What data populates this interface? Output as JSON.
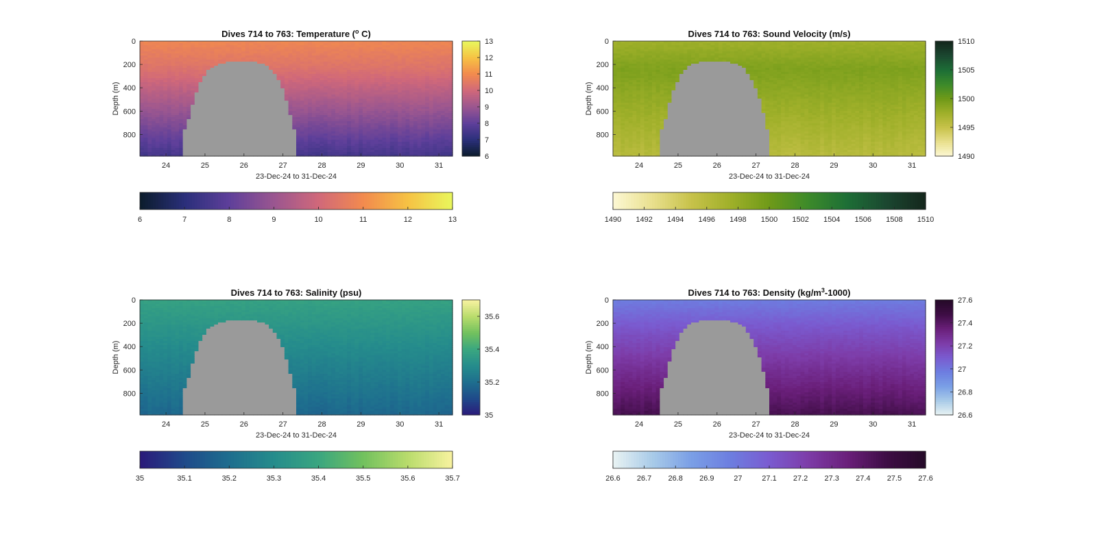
{
  "chart_data": [
    {
      "type": "heatmap",
      "title_main": "Dives 714 to 763: Temperature (",
      "title_sup": "o",
      "title_end": " C)",
      "xlabel": "23-Dec-24 to 31-Dec-24",
      "ylabel": "Depth (m)",
      "xticks": [
        "24",
        "25",
        "26",
        "27",
        "28",
        "29",
        "30",
        "31"
      ],
      "xtick_values": [
        24,
        25,
        26,
        27,
        28,
        29,
        30,
        31
      ],
      "xlim": [
        23.33,
        31.35
      ],
      "yticks": [
        "0",
        "200",
        "400",
        "600",
        "800"
      ],
      "ytick_values": [
        0,
        200,
        400,
        600,
        800
      ],
      "ylim": [
        0,
        985
      ],
      "colorbar_ticks": [
        "6",
        "7",
        "8",
        "9",
        "10",
        "11",
        "12",
        "13"
      ],
      "colorbar_values": [
        6,
        7,
        8,
        9,
        10,
        11,
        12,
        13
      ],
      "crange": [
        6,
        13
      ],
      "hbar_ticks": [
        "6",
        "7",
        "8",
        "9",
        "10",
        "11",
        "12",
        "13"
      ],
      "hbar_values": [
        6,
        7,
        8,
        9,
        10,
        11,
        12,
        13
      ],
      "colormap": [
        "#0b1c2b",
        "#2a2f7a",
        "#5e3f9a",
        "#9a5690",
        "#d0687a",
        "#f28a4e",
        "#f6c244",
        "#e9f75c"
      ],
      "values": {
        "surface": 10.9,
        "mid": 10.3,
        "deep": 7.5
      },
      "gap_start_day": 24.45,
      "gap_end_day": 27.35,
      "gap_top_depth": 180,
      "gap_color": "#9a9a9a"
    },
    {
      "type": "heatmap",
      "title_main": "Dives 714 to 763: Sound Velocity (m/s)",
      "title_sup": "",
      "title_end": "",
      "xlabel": "23-Dec-24 to 31-Dec-24",
      "ylabel": "Depth (m)",
      "xticks": [
        "24",
        "25",
        "26",
        "27",
        "28",
        "29",
        "30",
        "31"
      ],
      "xtick_values": [
        24,
        25,
        26,
        27,
        28,
        29,
        30,
        31
      ],
      "xlim": [
        23.33,
        31.35
      ],
      "yticks": [
        "0",
        "200",
        "400",
        "600",
        "800"
      ],
      "ytick_values": [
        0,
        200,
        400,
        600,
        800
      ],
      "ylim": [
        0,
        985
      ],
      "colorbar_ticks": [
        "1490",
        "1495",
        "1500",
        "1505",
        "1510"
      ],
      "colorbar_values": [
        1490,
        1495,
        1500,
        1505,
        1510
      ],
      "crange": [
        1490,
        1510
      ],
      "hbar_ticks": [
        "1490",
        "1492",
        "1494",
        "1496",
        "1498",
        "1500",
        "1502",
        "1504",
        "1506",
        "1508",
        "1510"
      ],
      "hbar_values": [
        1490,
        1492,
        1494,
        1496,
        1498,
        1500,
        1502,
        1504,
        1506,
        1508,
        1510
      ],
      "colormap": [
        "#fdf8d4",
        "#e9e08e",
        "#c7c24a",
        "#a0b02a",
        "#6f9a18",
        "#3c8a2a",
        "#1d6e36",
        "#1b4730",
        "#14261c"
      ],
      "values": {
        "surface": 1497.5,
        "mid": 1499.2,
        "deep": 1496.0
      },
      "gap_start_day": 24.55,
      "gap_end_day": 27.35,
      "gap_top_depth": 180,
      "gap_color": "#9a9a9a"
    },
    {
      "type": "heatmap",
      "title_main": "Dives 714 to 763: Salinity (psu)",
      "title_sup": "",
      "title_end": "",
      "xlabel": "23-Dec-24 to 31-Dec-24",
      "ylabel": "Depth (m)",
      "xticks": [
        "24",
        "25",
        "26",
        "27",
        "28",
        "29",
        "30",
        "31"
      ],
      "xtick_values": [
        24,
        25,
        26,
        27,
        28,
        29,
        30,
        31
      ],
      "xlim": [
        23.33,
        31.35
      ],
      "yticks": [
        "0",
        "200",
        "400",
        "600",
        "800"
      ],
      "ytick_values": [
        0,
        200,
        400,
        600,
        800
      ],
      "ylim": [
        0,
        985
      ],
      "colorbar_ticks": [
        "35",
        "35.2",
        "35.4",
        "35.6"
      ],
      "colorbar_values": [
        35,
        35.2,
        35.4,
        35.6
      ],
      "crange": [
        35,
        35.7
      ],
      "hbar_ticks": [
        "35",
        "35.1",
        "35.2",
        "35.3",
        "35.4",
        "35.5",
        "35.6",
        "35.7"
      ],
      "hbar_values": [
        35,
        35.1,
        35.2,
        35.3,
        35.4,
        35.5,
        35.6,
        35.7
      ],
      "colormap": [
        "#2b1a7a",
        "#1f4a8a",
        "#1e6e8e",
        "#258c8c",
        "#3aa680",
        "#72c15e",
        "#b9dc6c",
        "#f8f2a0"
      ],
      "values": {
        "surface": 35.38,
        "mid": 35.33,
        "deep": 35.18
      },
      "gap_start_day": 24.45,
      "gap_end_day": 27.35,
      "gap_top_depth": 180,
      "gap_color": "#9a9a9a"
    },
    {
      "type": "heatmap",
      "title_main": "Dives 714 to 763: Density (kg/m",
      "title_sup": "3",
      "title_end": "-1000)",
      "xlabel": "23-Dec-24 to 31-Dec-24",
      "ylabel": "Depth (m)",
      "xticks": [
        "24",
        "25",
        "26",
        "27",
        "28",
        "29",
        "30",
        "31"
      ],
      "xtick_values": [
        24,
        25,
        26,
        27,
        28,
        29,
        30,
        31
      ],
      "xlim": [
        23.33,
        31.35
      ],
      "yticks": [
        "0",
        "200",
        "400",
        "600",
        "800"
      ],
      "ytick_values": [
        0,
        200,
        400,
        600,
        800
      ],
      "ylim": [
        0,
        985
      ],
      "colorbar_ticks": [
        "26.6",
        "26.8",
        "27",
        "27.2",
        "27.4",
        "27.6"
      ],
      "colorbar_values": [
        26.6,
        26.8,
        27,
        27.2,
        27.4,
        27.6
      ],
      "crange": [
        26.6,
        27.6
      ],
      "hbar_ticks": [
        "26.6",
        "26.7",
        "26.8",
        "26.9",
        "27",
        "27.1",
        "27.2",
        "27.3",
        "27.4",
        "27.5",
        "27.6"
      ],
      "hbar_values": [
        26.6,
        26.7,
        26.8,
        26.9,
        27,
        27.1,
        27.2,
        27.3,
        27.4,
        27.5,
        27.6
      ],
      "colormap": [
        "#e9f3f3",
        "#a9cbe8",
        "#7a9fe6",
        "#6d7ee0",
        "#7a5bd0",
        "#7d3ca8",
        "#6a1f7a",
        "#3e0d45",
        "#250a28"
      ],
      "values": {
        "surface": 26.98,
        "mid": 27.12,
        "deep": 27.45
      },
      "gap_start_day": 24.55,
      "gap_end_day": 27.35,
      "gap_top_depth": 180,
      "gap_color": "#9a9a9a"
    }
  ]
}
